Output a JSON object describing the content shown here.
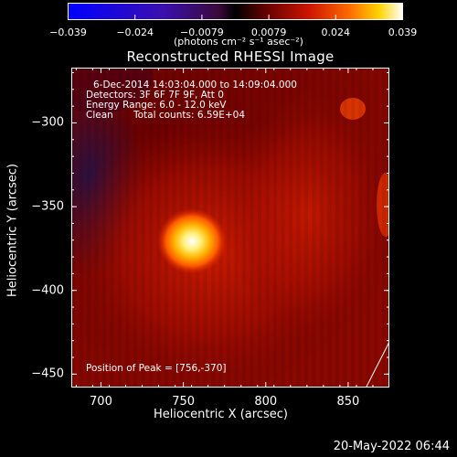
{
  "colorbar": {
    "ticks": [
      "−0.039",
      "−0.024",
      "−0.0079",
      "0.0079",
      "0.024",
      "0.039"
    ],
    "unit": "(photons cm⁻² s⁻¹ asec⁻²)"
  },
  "chart_data": {
    "type": "heatmap",
    "title": "Reconstructed RHESSI Image",
    "xlabel": "Heliocentric X (arcsec)",
    "ylabel": "Heliocentric Y (arcsec)",
    "xlim": [
      682,
      875
    ],
    "ylim": [
      -458,
      -267
    ],
    "x_ticks": [
      "700",
      "750",
      "800",
      "850"
    ],
    "y_ticks": [
      "−300",
      "−350",
      "−400",
      "−450"
    ],
    "colorscale": "RHESSI blue-black-red-yellow-white",
    "color_range": [
      -0.039,
      0.039
    ],
    "peak": {
      "x": 756,
      "y": -370
    },
    "annotations": {
      "line1": "6-Dec-2014 14:03:04.000 to 14:09:04.000",
      "line2": "Detectors: 3F 6F 7F 9F, Att 0",
      "line3": "Energy Range: 6.0 - 12.0 keV",
      "line4_a": "Clean",
      "line4_b": "Total counts: 6.59E+04",
      "peak_label": "Position of Peak = [756,-370]"
    }
  },
  "footer": {
    "timestamp": "20-May-2022 06:44"
  }
}
